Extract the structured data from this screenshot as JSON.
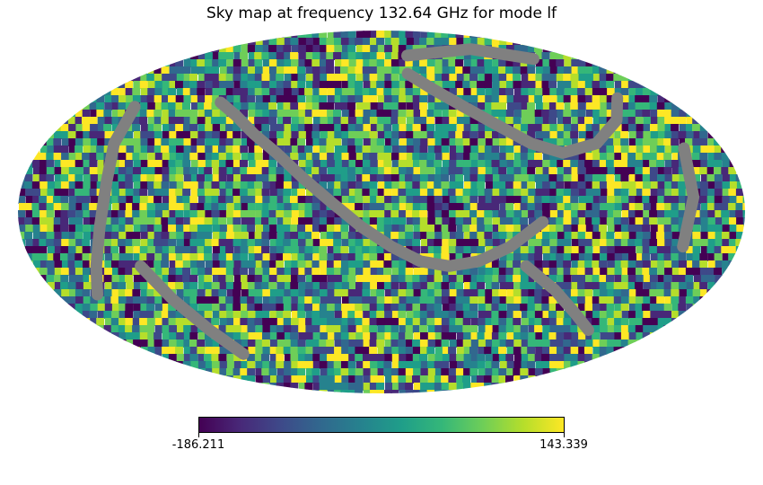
{
  "chart_data": {
    "type": "heatmap",
    "projection": "mollweide",
    "title": "Sky map at frequency 132.64 GHz for mode lf",
    "colormap": "viridis",
    "colormap_stops": [
      "#440154",
      "#482878",
      "#3e4989",
      "#31688e",
      "#26828e",
      "#1f9e89",
      "#35b779",
      "#6ece58",
      "#b5de2b",
      "#fde725"
    ],
    "masked_color": "#808080",
    "colorbar": {
      "min": -186.211,
      "max": 143.339,
      "min_label": "-186.211",
      "max_label": "143.339",
      "orientation": "horizontal"
    },
    "masked_bands": [
      {
        "name": "central-band",
        "points_lonlat": [
          [
            100,
            46
          ],
          [
            85,
            40
          ],
          [
            70,
            32
          ],
          [
            55,
            24
          ],
          [
            40,
            14
          ],
          [
            25,
            4
          ],
          [
            10,
            -6
          ],
          [
            -5,
            -14
          ],
          [
            -20,
            -20
          ],
          [
            -35,
            -22
          ],
          [
            -50,
            -20
          ],
          [
            -65,
            -14
          ],
          [
            -80,
            -4
          ]
        ]
      },
      {
        "name": "upper-right-band",
        "points_lonlat": [
          [
            -20,
            60
          ],
          [
            -35,
            52
          ],
          [
            -50,
            44
          ],
          [
            -65,
            36
          ],
          [
            -80,
            28
          ],
          [
            -95,
            24
          ],
          [
            -115,
            28
          ],
          [
            -135,
            38
          ],
          [
            -150,
            48
          ]
        ]
      },
      {
        "name": "left-band",
        "points_lonlat": [
          [
            150,
            44
          ],
          [
            143,
            28
          ],
          [
            138,
            12
          ],
          [
            140,
            -6
          ],
          [
            148,
            -22
          ],
          [
            158,
            -34
          ]
        ]
      },
      {
        "name": "right-band",
        "points_lonlat": [
          [
            -160,
            26
          ],
          [
            -155,
            6
          ],
          [
            -152,
            -14
          ]
        ]
      },
      {
        "name": "lower-left-band",
        "points_lonlat": [
          [
            125,
            -22
          ],
          [
            118,
            -36
          ],
          [
            112,
            -50
          ],
          [
            110,
            -62
          ]
        ]
      },
      {
        "name": "lower-right-band",
        "points_lonlat": [
          [
            -75,
            -22
          ],
          [
            -95,
            -32
          ],
          [
            -115,
            -42
          ],
          [
            -135,
            -50
          ]
        ]
      },
      {
        "name": "top-arc",
        "points_lonlat": [
          [
            -25,
            70
          ],
          [
            -60,
            72
          ],
          [
            -100,
            74
          ],
          [
            -140,
            68
          ]
        ]
      }
    ]
  }
}
